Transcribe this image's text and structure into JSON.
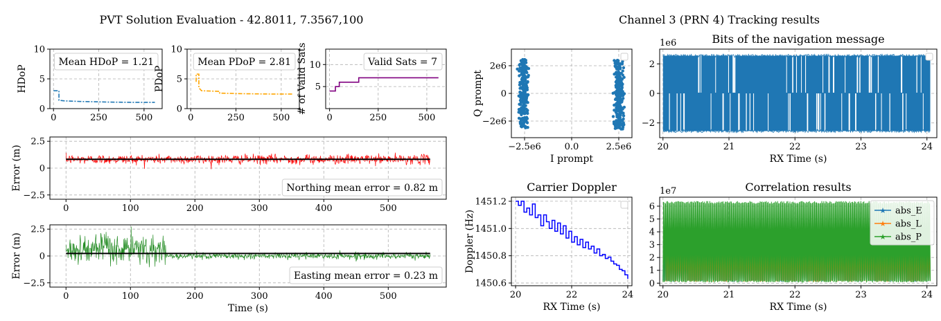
{
  "figure": {
    "left_title": "PVT Solution Evaluation - 42.8011, 7.3567,100",
    "right_title": "Channel 3 (PRN 4) Tracking results"
  },
  "colors": {
    "hdop": "#1f77b4",
    "pdop": "#ffa500",
    "sats": "#800080",
    "northing": "#ff0000",
    "easting": "#228b22",
    "mean_line": "#000000",
    "scatter": "#1f77b4",
    "bits": "#1f77b4",
    "doppler": "#0000ff",
    "abs_E": "#1f77b4",
    "abs_L": "#ff7f0e",
    "abs_P": "#2ca02c"
  },
  "chart_data": [
    {
      "id": "hdop",
      "type": "line",
      "ylabel": "HDoP",
      "xlim": [
        -20,
        600
      ],
      "ylim": [
        0,
        10
      ],
      "xticks": [
        0,
        250,
        500
      ],
      "yticks": [
        0,
        5,
        10
      ],
      "annotation": "Mean HDoP = 1.21",
      "x": [
        0,
        30,
        30,
        60,
        150,
        300,
        450,
        560
      ],
      "y": [
        3.0,
        3.0,
        1.4,
        1.3,
        1.2,
        1.1,
        1.05,
        1.05
      ]
    },
    {
      "id": "pdop",
      "type": "line",
      "ylabel": "PDoP",
      "xlim": [
        -20,
        600
      ],
      "ylim": [
        0,
        10
      ],
      "xticks": [
        0,
        250,
        500
      ],
      "yticks": [
        0,
        5,
        10
      ],
      "annotation": "Mean PDoP = 2.81",
      "x": [
        30,
        30,
        45,
        45,
        60,
        160,
        160,
        300,
        450,
        560
      ],
      "y": [
        4.5,
        5.8,
        5.8,
        3.5,
        3.0,
        2.9,
        2.6,
        2.5,
        2.45,
        2.45
      ]
    },
    {
      "id": "sats",
      "type": "step",
      "ylabel": "# of Valid Sats",
      "xlim": [
        -20,
        600
      ],
      "ylim": [
        0,
        13.5
      ],
      "xticks": [
        0,
        250,
        500
      ],
      "yticks": [
        5,
        10
      ],
      "annotation": "Valid Sats = 7",
      "x": [
        0,
        30,
        50,
        150,
        560
      ],
      "y": [
        4,
        5,
        6,
        7,
        7
      ]
    },
    {
      "id": "northing",
      "type": "line",
      "ylabel": "Error (m)",
      "xlim": [
        -25,
        590
      ],
      "ylim": [
        -2.9,
        2.9
      ],
      "xticks": [
        0,
        100,
        200,
        300,
        400,
        500
      ],
      "yticks": [
        -2.5,
        0.0,
        2.5
      ],
      "annotation": "Northing mean error = 0.82 m",
      "mean": 0.82,
      "x_range": [
        0,
        565
      ],
      "noise_std": 0.22
    },
    {
      "id": "easting",
      "type": "line",
      "ylabel": "Error (m)",
      "xlabel": "Time (s)",
      "xlim": [
        -25,
        590
      ],
      "ylim": [
        -2.9,
        2.9
      ],
      "xticks": [
        0,
        100,
        200,
        300,
        400,
        500
      ],
      "yticks": [
        -2.5,
        0.0,
        2.5
      ],
      "annotation": "Easting mean error = 0.23 m",
      "mean": 0.23,
      "x_range": [
        0,
        565
      ],
      "segments": [
        {
          "x0": 0,
          "x1": 155,
          "level": 0.6,
          "noise_std": 0.7
        },
        {
          "x0": 155,
          "x1": 565,
          "level": 0.0,
          "noise_std": 0.15
        }
      ]
    },
    {
      "id": "iq",
      "type": "scatter",
      "xlabel": "I prompt",
      "ylabel": "Q prompt",
      "xlim": [
        -3.2,
        3.2
      ],
      "ylim": [
        -3.2,
        3.2
      ],
      "xticks": [
        -2.5,
        0.0,
        2.5
      ],
      "xticklabels": [
        "−2.5e6",
        "0.0",
        "2.5e6"
      ],
      "yticks": [
        -2,
        0,
        2
      ],
      "yticklabels": [
        "−2e6",
        "0",
        "2e6"
      ],
      "clusters": [
        {
          "i_center": -2.55,
          "i_std": 0.12,
          "q_range": [
            -2.5,
            2.5
          ]
        },
        {
          "i_center": 2.5,
          "i_std": 0.12,
          "q_range": [
            -2.6,
            2.4
          ]
        }
      ]
    },
    {
      "id": "bits",
      "type": "line",
      "title": "Bits of the navigation message",
      "xlabel": "RX Time (s)",
      "exponent": "1e6",
      "xlim": [
        19.95,
        24.15
      ],
      "ylim": [
        -3.0,
        3.0
      ],
      "xticks": [
        20,
        21,
        22,
        23,
        24
      ],
      "yticks": [
        -2,
        0,
        2
      ],
      "x_range": [
        20.0,
        24.05
      ],
      "amplitude": 2.55
    },
    {
      "id": "doppler",
      "type": "step",
      "title": "Carrier Doppler",
      "xlabel": "RX Time (s)",
      "ylabel": "Doppler (Hz)",
      "xlim": [
        19.85,
        24.15
      ],
      "ylim": [
        1450.58,
        1451.23
      ],
      "xticks": [
        20,
        22,
        24
      ],
      "yticks": [
        1450.6,
        1450.8,
        1451.0,
        1451.2
      ],
      "yticklabels": [
        "1450.6",
        "1450.8",
        "1451.0",
        "1451.2"
      ],
      "x": [
        20.0,
        20.1,
        20.2,
        20.3,
        20.4,
        20.5,
        20.6,
        20.7,
        20.8,
        20.9,
        21.0,
        21.1,
        21.2,
        21.3,
        21.4,
        21.5,
        21.6,
        21.7,
        21.8,
        21.9,
        22.0,
        22.1,
        22.2,
        22.3,
        22.4,
        22.5,
        22.6,
        22.7,
        22.8,
        22.9,
        23.0,
        23.1,
        23.2,
        23.3,
        23.4,
        23.5,
        23.6,
        23.7,
        23.8,
        23.9,
        24.0
      ],
      "y": [
        1451.2,
        1451.17,
        1451.2,
        1451.12,
        1451.15,
        1451.1,
        1451.18,
        1451.08,
        1451.1,
        1451.02,
        1451.1,
        1451.05,
        1451.0,
        1451.06,
        1450.98,
        1451.04,
        1450.96,
        1451.02,
        1450.93,
        1450.98,
        1450.9,
        1450.94,
        1450.88,
        1450.92,
        1450.86,
        1450.9,
        1450.85,
        1450.87,
        1450.82,
        1450.85,
        1450.8,
        1450.81,
        1450.78,
        1450.79,
        1450.76,
        1450.74,
        1450.73,
        1450.7,
        1450.69,
        1450.66,
        1450.63
      ]
    },
    {
      "id": "correlation",
      "type": "line",
      "title": "Correlation results",
      "xlabel": "RX Time (s)",
      "exponent": "1e7",
      "xlim": [
        19.95,
        24.15
      ],
      "ylim": [
        -0.2,
        6.7
      ],
      "xticks": [
        20,
        21,
        22,
        23,
        24
      ],
      "yticks": [
        0,
        1,
        2,
        3,
        4,
        5,
        6
      ],
      "x_range": [
        20.0,
        24.05
      ],
      "series": [
        {
          "name": "abs_E",
          "low": 0.1,
          "high": 3.5
        },
        {
          "name": "abs_L",
          "low": 0.1,
          "high": 3.5
        },
        {
          "name": "abs_P",
          "low": 0.05,
          "high": 6.4
        }
      ],
      "legend": [
        "abs_E",
        "abs_L",
        "abs_P"
      ]
    }
  ]
}
